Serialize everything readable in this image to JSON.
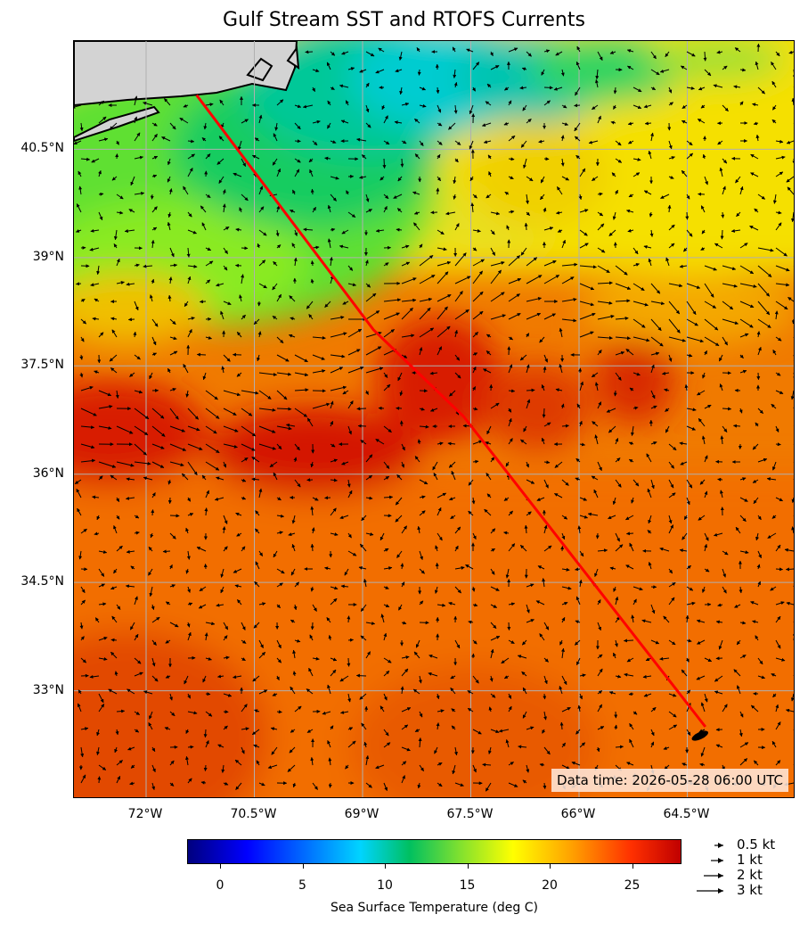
{
  "title": "Gulf Stream SST and RTOFS Currents",
  "extent": {
    "lon_min": -73.0,
    "lon_max": -63.0,
    "lat_min": 31.5,
    "lat_max": 42.0
  },
  "lat_ticks": [
    {
      "value": 33.0,
      "label": "33°N"
    },
    {
      "value": 34.5,
      "label": "34.5°N"
    },
    {
      "value": 36.0,
      "label": "36°N"
    },
    {
      "value": 37.5,
      "label": "37.5°N"
    },
    {
      "value": 39.0,
      "label": "39°N"
    },
    {
      "value": 40.5,
      "label": "40.5°N"
    }
  ],
  "lon_ticks": [
    {
      "value": -72.0,
      "label": "72°W"
    },
    {
      "value": -70.5,
      "label": "70.5°W"
    },
    {
      "value": -69.0,
      "label": "69°W"
    },
    {
      "value": -67.5,
      "label": "67.5°W"
    },
    {
      "value": -66.0,
      "label": "66°W"
    },
    {
      "value": -64.5,
      "label": "64.5°W"
    }
  ],
  "grid": true,
  "route": {
    "color": "#ff0000",
    "points": [
      [
        -71.3,
        41.25
      ],
      [
        -68.85,
        38.0
      ],
      [
        -67.6,
        36.8
      ],
      [
        -64.25,
        32.5
      ]
    ]
  },
  "data_time": "Data time: 2026-05-28 06:00 UTC",
  "colorbar": {
    "label": "Sea Surface Temperature (deg C)",
    "range": [
      -2,
      28
    ],
    "ticks": [
      0,
      5,
      10,
      15,
      20,
      25
    ],
    "colormap": "jet"
  },
  "quiver_key": [
    {
      "label": "0.5 kt",
      "speed": 0.5
    },
    {
      "label": "1 kt",
      "speed": 1
    },
    {
      "label": "2 kt",
      "speed": 2
    },
    {
      "label": "3 kt",
      "speed": 3
    }
  ],
  "colors": {
    "land": "#d3d3d3",
    "coast": "#000000",
    "grid": "#b0b0b0",
    "arrow": "#000000"
  }
}
